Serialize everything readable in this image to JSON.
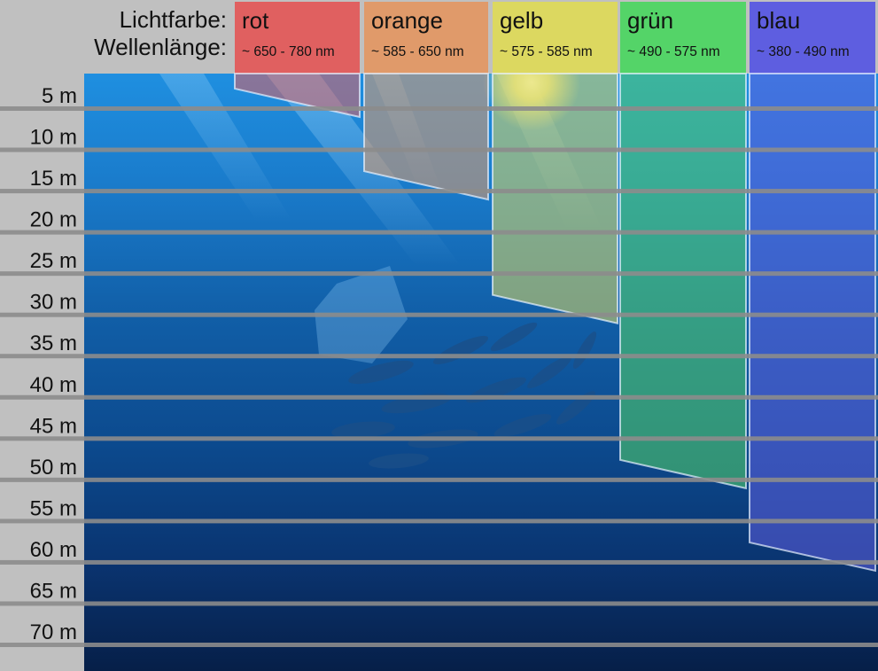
{
  "header": {
    "color_label": "Lichtfarbe:",
    "wavelength_label": "Wellenlänge:"
  },
  "bands": [
    {
      "name": "rot",
      "wavelength": "~ 650 - 780 nm",
      "color": "#e06060",
      "max_depth_m": 5
    },
    {
      "name": "orange",
      "wavelength": "~ 585 - 650 nm",
      "color": "#e09a6a",
      "max_depth_m": 15
    },
    {
      "name": "gelb",
      "wavelength": "~ 575 - 585 nm",
      "color": "#dcd860",
      "max_depth_m": 30
    },
    {
      "name": "grün",
      "wavelength": "~ 490 - 575 nm",
      "color": "#54d468",
      "max_depth_m": 50
    },
    {
      "name": "blau",
      "wavelength": "~ 380 - 490 nm",
      "color": "#5e5ee0",
      "max_depth_m": 60
    }
  ],
  "depths": [
    "5 m",
    "10 m",
    "15 m",
    "20 m",
    "25 m",
    "30 m",
    "35 m",
    "40 m",
    "45 m",
    "50 m",
    "55 m",
    "60 m",
    "65 m",
    "70 m"
  ]
}
